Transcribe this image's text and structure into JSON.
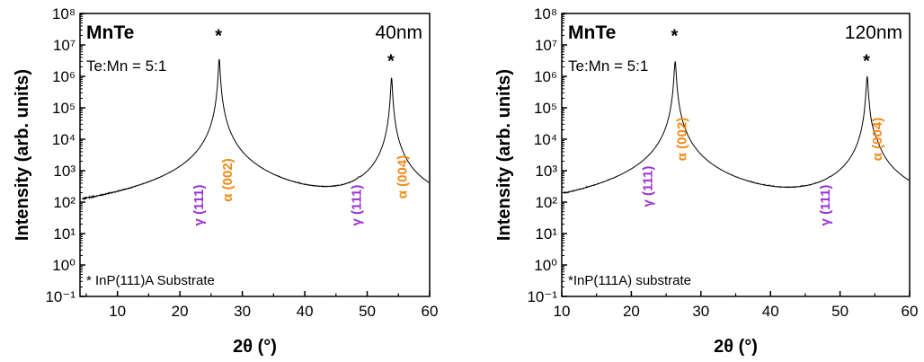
{
  "colors": {
    "gamma": "#9a2fd6",
    "alpha": "#f28a18",
    "trace": "#000000"
  },
  "chart_data": [
    {
      "type": "line",
      "xlabel": "2θ (°)",
      "ylabel": "Intensity (arb. units)",
      "xlim": [
        4,
        60
      ],
      "ylim_log10": [
        -1,
        8
      ],
      "yscale": "log",
      "x_ticks": [
        "10",
        "20",
        "30",
        "40",
        "50",
        "60"
      ],
      "y_ticks": [
        "10⁻¹",
        "10⁰",
        "10¹",
        "10²",
        "10³",
        "10⁴",
        "10⁵",
        "10⁶",
        "10⁷",
        "10⁸"
      ],
      "sample": "MnTe",
      "thickness": "40nm",
      "ratio": "Te:Mn = 5:1",
      "substrate_note": "* InP(111)A Substrate",
      "noise_floor": 10,
      "noise_cutoff_x": 57,
      "peaks": [
        {
          "x": 23.7,
          "y": 50,
          "width": 0.15
        },
        {
          "x": 26.3,
          "y": 3500000,
          "width": 0.12
        },
        {
          "x": 26.6,
          "y": 15000,
          "width": 0.5
        },
        {
          "x": 27.5,
          "y": 300,
          "width": 1.3
        },
        {
          "x": 48.6,
          "y": 50,
          "width": 0.15
        },
        {
          "x": 53.9,
          "y": 900000,
          "width": 0.12
        },
        {
          "x": 55.0,
          "y": 280,
          "width": 0.7
        }
      ],
      "peak_labels": [
        {
          "x": 23.7,
          "text": "γ (111)",
          "family": "gamma",
          "y_log": 1.9
        },
        {
          "x": 28.3,
          "text": "α (002)",
          "family": "alpha",
          "y_log": 2.7
        },
        {
          "x": 49.0,
          "text": "γ (111)",
          "family": "gamma",
          "y_log": 1.9
        },
        {
          "x": 56.3,
          "text": "α (004)",
          "family": "alpha",
          "y_log": 2.8
        }
      ],
      "stars": [
        {
          "x": 26.2,
          "y_log": 7.1
        },
        {
          "x": 53.8,
          "y_log": 6.3
        }
      ]
    },
    {
      "type": "line",
      "xlabel": "2θ (°)",
      "ylabel": "Intensity (arb. units)",
      "xlim": [
        10,
        60
      ],
      "ylim_log10": [
        -1,
        8
      ],
      "yscale": "log",
      "x_ticks": [
        "10",
        "20",
        "30",
        "40",
        "50",
        "60"
      ],
      "y_ticks": [
        "10⁻¹",
        "10⁰",
        "10¹",
        "10²",
        "10³",
        "10⁴",
        "10⁵",
        "10⁶",
        "10⁷",
        "10⁸"
      ],
      "sample": "MnTe",
      "thickness": "120nm",
      "ratio": "Te:Mn = 5:1",
      "substrate_note": "*InP(111A) substrate",
      "noise_floor": 10,
      "noise_cutoff_x": 59,
      "peaks": [
        {
          "x": 23.7,
          "y": 50,
          "width": 0.15
        },
        {
          "x": 26.3,
          "y": 3000000,
          "width": 0.12
        },
        {
          "x": 26.5,
          "y": 5000,
          "width": 0.5
        },
        {
          "x": 27.0,
          "y": 300,
          "width": 1.0
        },
        {
          "x": 48.4,
          "y": 20,
          "width": 0.15
        },
        {
          "x": 53.9,
          "y": 1000000,
          "width": 0.12
        },
        {
          "x": 55.0,
          "y": 3500,
          "width": 0.6
        }
      ],
      "peak_labels": [
        {
          "x": 23.0,
          "text": "γ (111)",
          "family": "gamma",
          "y_log": 2.5
        },
        {
          "x": 27.9,
          "text": "α (002)",
          "family": "alpha",
          "y_log": 4.0
        },
        {
          "x": 48.5,
          "text": "γ (111)",
          "family": "gamma",
          "y_log": 1.9
        },
        {
          "x": 56.0,
          "text": "α (004)",
          "family": "alpha",
          "y_log": 4.0
        }
      ],
      "stars": [
        {
          "x": 26.2,
          "y_log": 7.1
        },
        {
          "x": 53.8,
          "y_log": 6.3
        }
      ]
    }
  ]
}
